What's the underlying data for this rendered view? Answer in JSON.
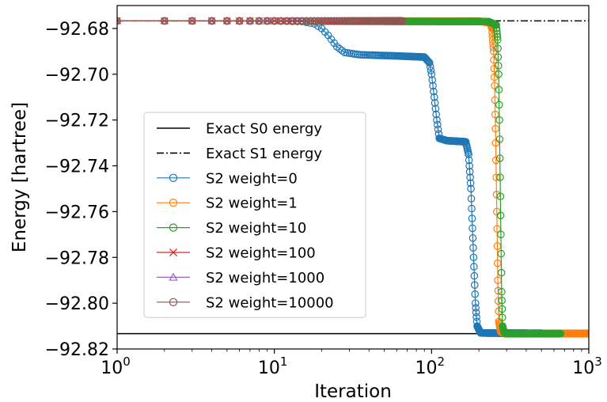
{
  "chart_data": {
    "type": "line",
    "title": "",
    "xlabel": "Iteration",
    "ylabel": "Energy [hartree]",
    "xscale": "log",
    "xlim": [
      1,
      1000
    ],
    "ylim": [
      -92.82,
      -92.67
    ],
    "xticks": [
      {
        "value": 1,
        "base": "10",
        "exp": "0"
      },
      {
        "value": 10,
        "base": "10",
        "exp": "1"
      },
      {
        "value": 100,
        "base": "10",
        "exp": "2"
      },
      {
        "value": 1000,
        "base": "10",
        "exp": "3"
      }
    ],
    "yticks": [
      {
        "value": -92.68,
        "label": "−92.68"
      },
      {
        "value": -92.7,
        "label": "−92.70"
      },
      {
        "value": -92.72,
        "label": "−92.72"
      },
      {
        "value": -92.74,
        "label": "−92.74"
      },
      {
        "value": -92.76,
        "label": "−92.76"
      },
      {
        "value": -92.78,
        "label": "−92.78"
      },
      {
        "value": -92.8,
        "label": "−92.80"
      },
      {
        "value": -92.82,
        "label": "−92.82"
      }
    ],
    "grid": false,
    "legend_position": "center-left",
    "reference_lines": [
      {
        "name": "Exact S0 energy",
        "value": -92.8133,
        "color": "#000000",
        "style": "solid"
      },
      {
        "name": "Exact S1 energy",
        "value": -92.6767,
        "color": "#000000",
        "style": "dashdot"
      }
    ],
    "series": [
      {
        "name": "S2 weight=0",
        "color": "#1f77b4",
        "marker": "o",
        "last_iteration": 1000,
        "points": [
          [
            1,
            -92.6767
          ],
          [
            10,
            -92.6767
          ],
          [
            15,
            -92.677
          ],
          [
            18,
            -92.678
          ],
          [
            20,
            -92.68
          ],
          [
            22,
            -92.683
          ],
          [
            25,
            -92.688
          ],
          [
            28,
            -92.6905
          ],
          [
            35,
            -92.6915
          ],
          [
            60,
            -92.692
          ],
          [
            90,
            -92.6925
          ],
          [
            97,
            -92.695
          ],
          [
            100,
            -92.7
          ],
          [
            104,
            -92.71
          ],
          [
            108,
            -92.72
          ],
          [
            112,
            -92.728
          ],
          [
            125,
            -92.729
          ],
          [
            165,
            -92.7295
          ],
          [
            172,
            -92.735
          ],
          [
            178,
            -92.75
          ],
          [
            185,
            -92.78
          ],
          [
            190,
            -92.8
          ],
          [
            195,
            -92.81
          ],
          [
            205,
            -92.813
          ],
          [
            1000,
            -92.8133
          ]
        ]
      },
      {
        "name": "S2 weight=1",
        "color": "#ff7f0e",
        "marker": "o",
        "last_iteration": 1000,
        "points": [
          [
            1,
            -92.6767
          ],
          [
            200,
            -92.6768
          ],
          [
            235,
            -92.6775
          ],
          [
            242,
            -92.68
          ],
          [
            248,
            -92.69
          ],
          [
            252,
            -92.705
          ],
          [
            256,
            -92.73
          ],
          [
            260,
            -92.76
          ],
          [
            264,
            -92.79
          ],
          [
            268,
            -92.808
          ],
          [
            275,
            -92.8125
          ],
          [
            290,
            -92.8133
          ],
          [
            1000,
            -92.8133
          ]
        ]
      },
      {
        "name": "S2 weight=10",
        "color": "#2ca02c",
        "marker": "o",
        "last_iteration": 660,
        "points": [
          [
            1,
            -92.6767
          ],
          [
            230,
            -92.677
          ],
          [
            258,
            -92.6785
          ],
          [
            263,
            -92.685
          ],
          [
            267,
            -92.7
          ],
          [
            270,
            -92.72
          ],
          [
            273,
            -92.745
          ],
          [
            276,
            -92.77
          ],
          [
            279,
            -92.795
          ],
          [
            283,
            -92.81
          ],
          [
            290,
            -92.813
          ],
          [
            300,
            -92.8133
          ],
          [
            660,
            -92.8133
          ]
        ]
      },
      {
        "name": "S2 weight=100",
        "color": "#d62728",
        "marker": "x",
        "last_iteration": 65,
        "points": [
          [
            1,
            -92.6767
          ],
          [
            65,
            -92.6767
          ]
        ]
      },
      {
        "name": "S2 weight=1000",
        "color": "#9467bd",
        "marker": "^",
        "last_iteration": 65,
        "points": [
          [
            1,
            -92.6767
          ],
          [
            65,
            -92.6767
          ]
        ]
      },
      {
        "name": "S2 weight=10000",
        "color": "#8c564b",
        "marker": "o",
        "last_iteration": 65,
        "points": [
          [
            1,
            -92.6767
          ],
          [
            65,
            -92.6767
          ]
        ]
      }
    ]
  }
}
